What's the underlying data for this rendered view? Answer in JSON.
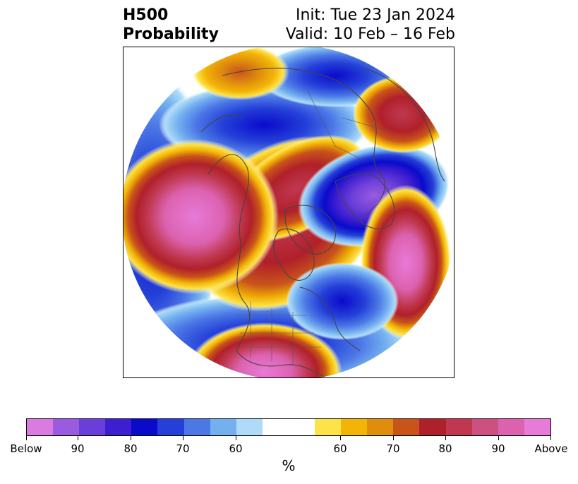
{
  "title": {
    "left_line1": "H500",
    "left_line2": "Probability",
    "right_line1": "Init: Tue 23 Jan 2024",
    "right_line2": "Valid: 10 Feb – 16 Feb"
  },
  "map": {
    "projection": "north-polar-stereographic",
    "region": "Northern Hemisphere (North America, Arctic, Eurasia)",
    "boundary": "circular"
  },
  "colorbar": {
    "label": "%",
    "tick_labels": [
      "Below",
      "90",
      "80",
      "70",
      "60",
      "60",
      "70",
      "80",
      "90",
      "Above"
    ],
    "below_colors": [
      "#d97be0",
      "#9a5be0",
      "#6a3ed8",
      "#3d1ed0",
      "#0a0acb",
      "#2440d8",
      "#4c78e6",
      "#74b0f0",
      "#aedcf8"
    ],
    "above_colors": [
      "#fde24a",
      "#f2b406",
      "#e08c0e",
      "#c8541a",
      "#b0202a",
      "#c03850",
      "#cc5080",
      "#dc62b0",
      "#e87ad8"
    ],
    "neutral_color": "#ffffff"
  }
}
